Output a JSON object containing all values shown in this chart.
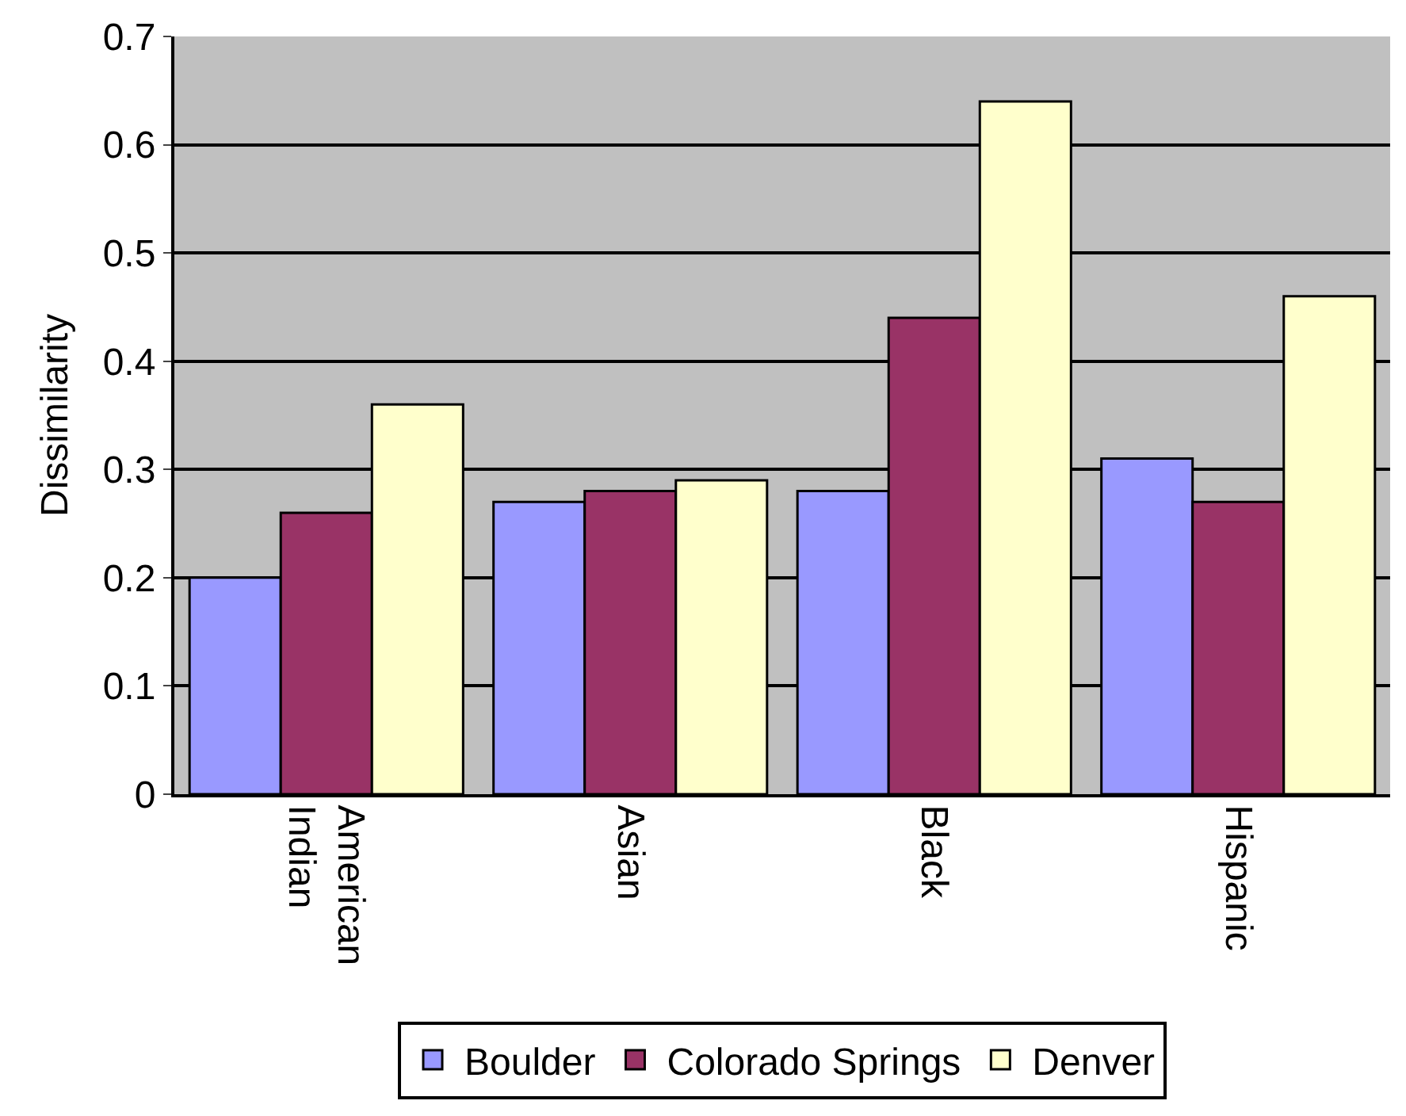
{
  "chart_data": {
    "type": "bar",
    "ylabel": "Dissimilarity",
    "categories": [
      "American Indian",
      "Asian",
      "Black",
      "Hispanic"
    ],
    "series": [
      {
        "name": "Boulder",
        "color": "#9999ff",
        "values": [
          0.2,
          0.27,
          0.28,
          0.31
        ]
      },
      {
        "name": "Colorado Springs",
        "color": "#993366",
        "values": [
          0.26,
          0.28,
          0.44,
          0.27
        ]
      },
      {
        "name": "Denver",
        "color": "#ffffcc",
        "values": [
          0.36,
          0.29,
          0.64,
          0.46
        ]
      }
    ],
    "ylim": [
      0,
      0.7
    ],
    "yticks": [
      0,
      0.1,
      0.2,
      0.3,
      0.4,
      0.5,
      0.6,
      0.7
    ],
    "grid": "y",
    "legend": "bottom"
  }
}
